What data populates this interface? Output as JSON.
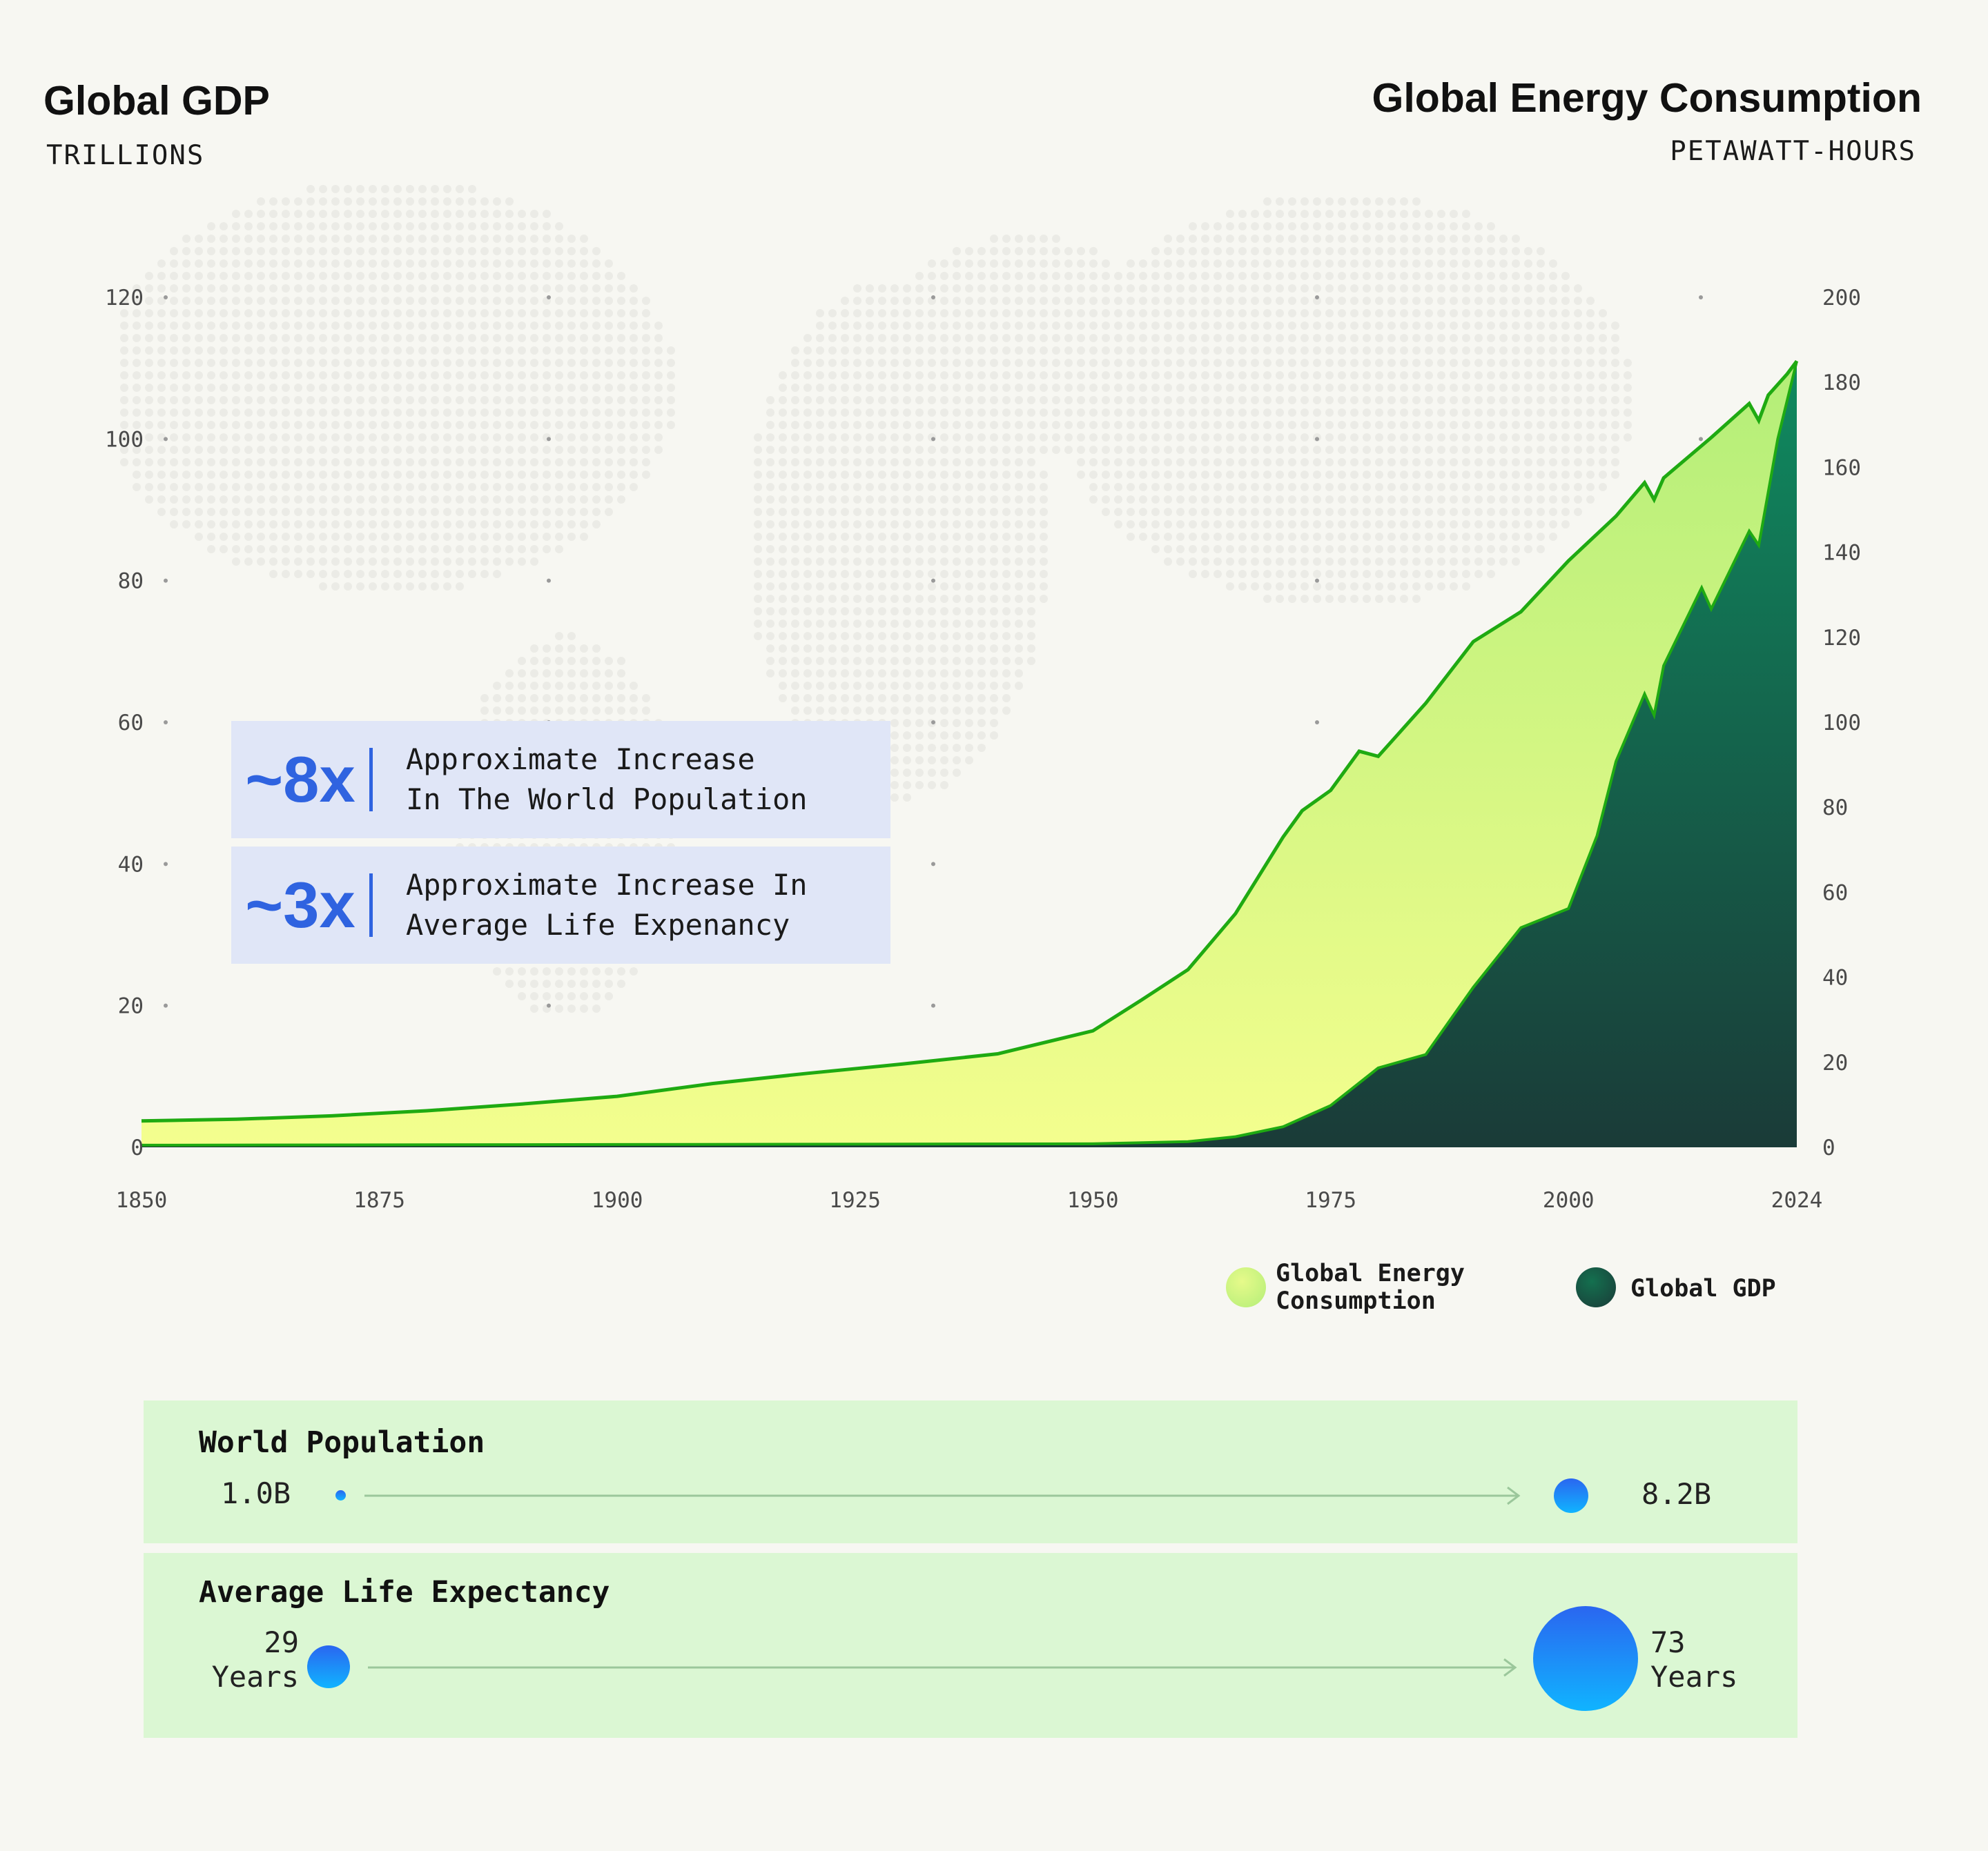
{
  "left_axis": {
    "title": "Global GDP",
    "unit": "TRILLIONS"
  },
  "right_axis": {
    "title": "Global Energy Consumption",
    "unit": "PETAWATT-HOURS"
  },
  "callouts": [
    {
      "multiplier": "~8x",
      "text": "Approximate Increase\nIn The World Population"
    },
    {
      "multiplier": "~3x",
      "text": "Approximate Increase In\nAverage Life Expenancy"
    }
  ],
  "legend": [
    {
      "label": "Global Energy\nConsumption",
      "color": "#c5f286"
    },
    {
      "label": "Global GDP",
      "color": "#14704f"
    }
  ],
  "population": {
    "title": "World Population",
    "start": "1.0B",
    "end": "8.2B"
  },
  "life_expectancy": {
    "title": "Average Life Expectancy",
    "start": "29\nYears",
    "end": "73\nYears"
  },
  "chart_data": {
    "type": "area",
    "x_ticks": [
      "1850",
      "1875",
      "1900",
      "1925",
      "1950",
      "1975",
      "2000",
      "2024"
    ],
    "y_left_ticks": [
      "0",
      "20",
      "40",
      "60",
      "80",
      "100",
      "120"
    ],
    "y_right_ticks": [
      "0",
      "20",
      "40",
      "60",
      "80",
      "100",
      "120",
      "140",
      "160",
      "180",
      "200"
    ],
    "xlim": [
      1850,
      2024
    ],
    "y_left_lim": [
      0,
      120
    ],
    "y_right_lim": [
      0,
      200
    ],
    "series": [
      {
        "name": "Global Energy Consumption",
        "axis": "right",
        "color": "#c5f286",
        "x": [
          1850,
          1860,
          1870,
          1880,
          1890,
          1900,
          1910,
          1920,
          1930,
          1940,
          1950,
          1955,
          1960,
          1965,
          1970,
          1972,
          1975,
          1978,
          1980,
          1982,
          1985,
          1990,
          1995,
          2000,
          2005,
          2008,
          2009,
          2010,
          2015,
          2019,
          2020,
          2021,
          2023,
          2024
        ],
        "values": [
          6.2,
          6.6,
          7.4,
          8.6,
          10.2,
          12.0,
          15.0,
          17.4,
          19.6,
          22.0,
          27.4,
          34.5,
          41.8,
          55.0,
          73.0,
          79.2,
          84.0,
          93.2,
          92.0,
          97.0,
          104.5,
          119.0,
          126.0,
          138.0,
          148.5,
          156.4,
          152.4,
          157.5,
          167.0,
          175.0,
          171.0,
          177.0,
          182.0,
          185.0
        ]
      },
      {
        "name": "Global GDP",
        "axis": "left",
        "color": "#14704f",
        "x": [
          1850,
          1900,
          1950,
          1960,
          1965,
          1970,
          1975,
          1980,
          1985,
          1990,
          1995,
          2000,
          2003,
          2005,
          2008,
          2009,
          2010,
          2014,
          2015,
          2019,
          2020,
          2022,
          2024
        ],
        "values": [
          0.3,
          0.4,
          0.5,
          0.8,
          1.5,
          2.9,
          5.9,
          11.2,
          13.1,
          22.6,
          31.0,
          33.7,
          44.0,
          54.5,
          64.0,
          61.0,
          68.0,
          79.0,
          76.0,
          87.0,
          85.0,
          100.0,
          111.0
        ]
      }
    ]
  }
}
